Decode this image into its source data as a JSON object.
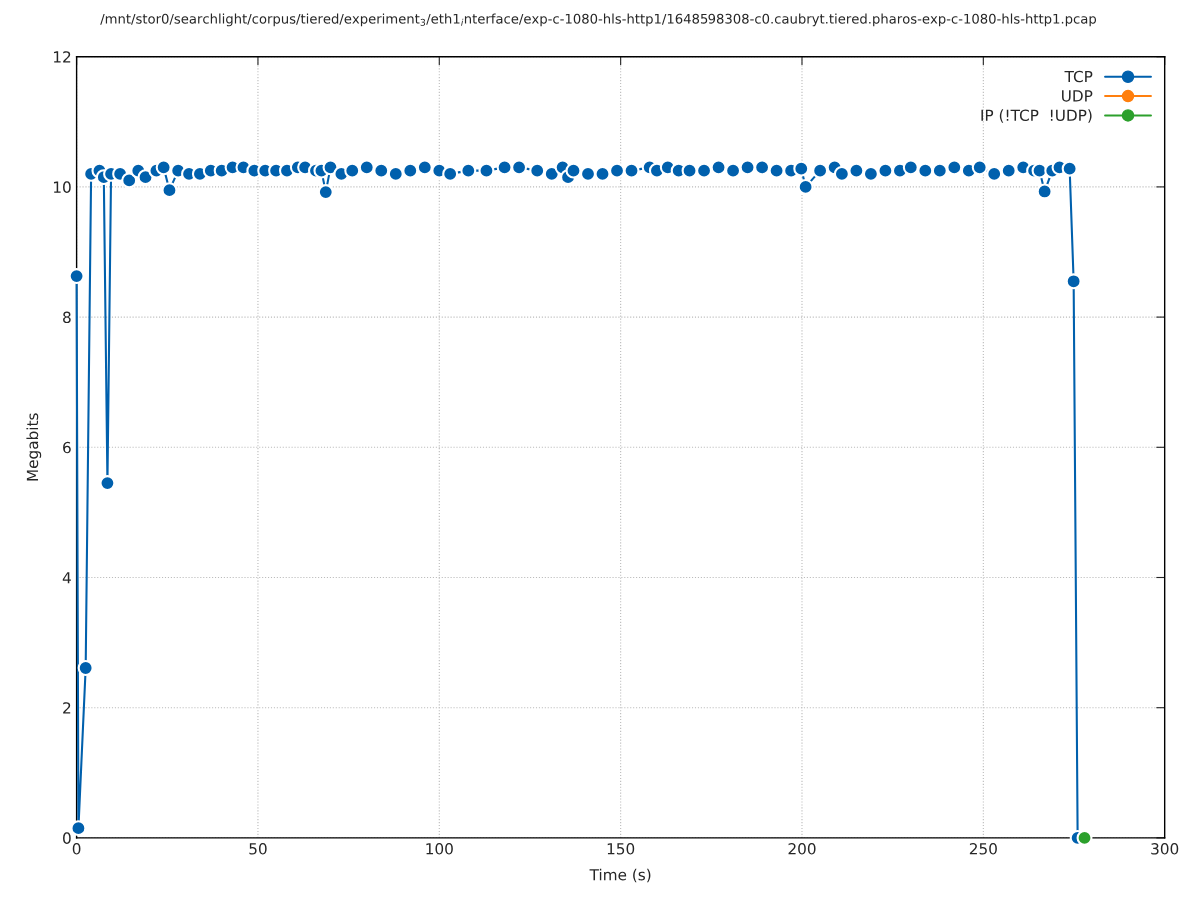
{
  "chart_data": {
    "type": "line",
    "title": "/mnt/stor0/searchlight/corpus/tiered/experiment$_{3}$/eth1$_{i}$nterface/exp-c-1080-hls-http1/1648598308-c0.caubryt.tiered.pharos-exp-c-1080-hls-http1.pcap",
    "xlabel": "Time (s)",
    "ylabel": "Megabits",
    "xlim": [
      0,
      300
    ],
    "xticks": [
      0,
      50,
      100,
      150,
      200,
      250,
      300
    ],
    "ylim": [
      0,
      12
    ],
    "yticks": [
      0,
      2,
      4,
      6,
      8,
      10,
      12
    ],
    "grid": true,
    "legend": "top right",
    "marker": "circle",
    "line_style": "solid",
    "series": [
      {
        "name": "TCP",
        "color": "#0060ad",
        "x": [
          0,
          0.5,
          2.5,
          4,
          6.3,
          7.5,
          8.5,
          9.5,
          12,
          14.5,
          17,
          19,
          22,
          24,
          25.6,
          28,
          31,
          34,
          37,
          40,
          43,
          46,
          49,
          52,
          55,
          58,
          61,
          63,
          66,
          67.5,
          68.7,
          70,
          73,
          76,
          80,
          84,
          88,
          92,
          96,
          100,
          103,
          108,
          113,
          118,
          122,
          127,
          131,
          134,
          135.5,
          137,
          141,
          145,
          149,
          153,
          158,
          160,
          163,
          166,
          169,
          173,
          177,
          181,
          185,
          189,
          193,
          197,
          199.8,
          201,
          205,
          209,
          211,
          215,
          219,
          223,
          227,
          230,
          234,
          238,
          242,
          246,
          249,
          253,
          257,
          261,
          264,
          265.5,
          266.9,
          269,
          271,
          273.8,
          274.9,
          276
        ],
        "values": [
          8.63,
          0.15,
          2.61,
          10.2,
          10.25,
          10.15,
          5.45,
          10.2,
          10.2,
          10.1,
          10.25,
          10.15,
          10.25,
          10.3,
          9.95,
          10.25,
          10.2,
          10.2,
          10.25,
          10.25,
          10.3,
          10.3,
          10.25,
          10.25,
          10.25,
          10.25,
          10.3,
          10.3,
          10.25,
          10.25,
          9.92,
          10.3,
          10.2,
          10.25,
          10.3,
          10.25,
          10.2,
          10.25,
          10.3,
          10.25,
          10.2,
          10.25,
          10.25,
          10.3,
          10.3,
          10.25,
          10.2,
          10.3,
          10.15,
          10.25,
          10.2,
          10.2,
          10.25,
          10.25,
          10.3,
          10.25,
          10.3,
          10.25,
          10.25,
          10.25,
          10.3,
          10.25,
          10.3,
          10.3,
          10.25,
          10.25,
          10.28,
          10.0,
          10.25,
          10.3,
          10.2,
          10.25,
          10.2,
          10.25,
          10.25,
          10.3,
          10.25,
          10.25,
          10.3,
          10.25,
          10.3,
          10.2,
          10.25,
          10.3,
          10.25,
          10.25,
          9.93,
          10.25,
          10.3,
          10.28,
          8.55,
          0.0
        ]
      },
      {
        "name": "UDP",
        "color": "#ff7f0e"
      },
      {
        "name": "IP (!TCP  !UDP)",
        "color": "#2ca02c",
        "x": [
          277.9
        ],
        "values": [
          0
        ]
      }
    ]
  }
}
